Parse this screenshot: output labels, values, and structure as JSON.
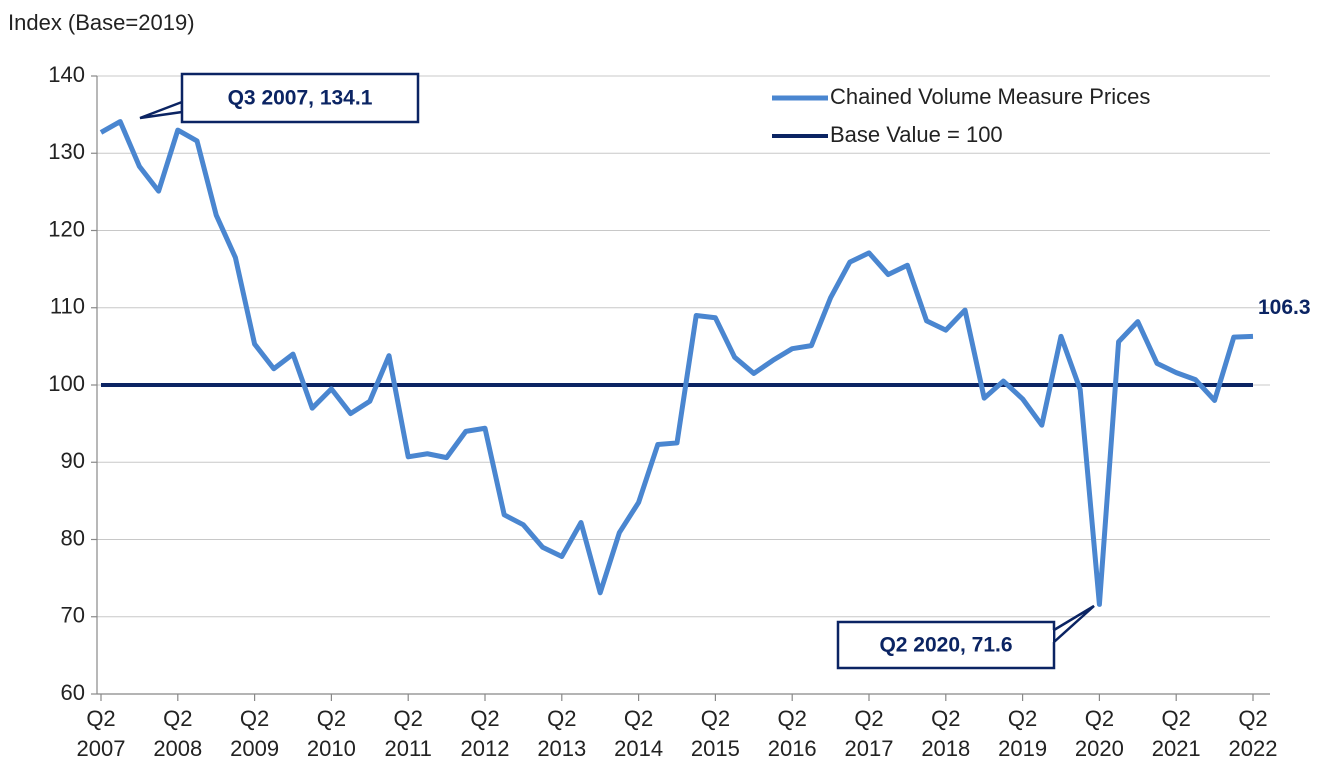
{
  "chart_data": {
    "type": "line",
    "y_label": "Index (Base=2019)",
    "categories": [
      "Q2 2007",
      null,
      null,
      null,
      "Q2 2008",
      null,
      null,
      null,
      "Q2 2009",
      null,
      null,
      null,
      "Q2 2010",
      null,
      null,
      null,
      "Q2 2011",
      null,
      null,
      null,
      "Q2 2012",
      null,
      null,
      null,
      "Q2 2013",
      null,
      null,
      null,
      "Q2 2014",
      null,
      null,
      null,
      "Q2 2015",
      null,
      null,
      null,
      "Q2 2016",
      null,
      null,
      null,
      "Q2 2017",
      null,
      null,
      null,
      "Q2 2018",
      null,
      null,
      null,
      "Q2 2019",
      null,
      null,
      null,
      "Q2 2020",
      null,
      null,
      null,
      "Q2 2021",
      null,
      null,
      null,
      "Q2 2022"
    ],
    "series": [
      {
        "name": "Chained Volume Measure Prices",
        "color": "#4a86d0",
        "values": [
          132.7,
          134.1,
          128.3,
          125.1,
          133,
          131.6,
          122,
          116.5,
          105.3,
          102.1,
          104,
          97,
          99.5,
          96.3,
          97.9,
          103.8,
          90.7,
          91.1,
          90.6,
          94,
          94.4,
          83.2,
          81.9,
          79,
          77.8,
          82.2,
          73.1,
          80.9,
          84.8,
          92.3,
          92.5,
          109,
          108.7,
          103.6,
          101.5,
          103.2,
          104.7,
          105.1,
          111.3,
          115.9,
          117.1,
          114.3,
          115.5,
          108.3,
          107.1,
          109.7,
          98.3,
          100.5,
          98.2,
          94.8,
          106.3,
          99.4,
          71.6,
          105.6,
          108.2,
          102.8,
          101.6,
          100.7,
          98,
          106.2,
          106.3
        ],
        "value_labels": [
          null,
          "Q3 2007, 134.1",
          null,
          null,
          null,
          null,
          null,
          null,
          null,
          null,
          null,
          null,
          null,
          null,
          null,
          null,
          null,
          null,
          null,
          null,
          null,
          null,
          null,
          null,
          null,
          null,
          null,
          null,
          null,
          null,
          null,
          null,
          null,
          null,
          null,
          null,
          null,
          null,
          null,
          null,
          null,
          null,
          null,
          null,
          null,
          null,
          null,
          null,
          null,
          null,
          null,
          null,
          "Q2 2020, 71.6",
          null,
          null,
          null,
          null,
          null,
          null,
          null,
          "106.3"
        ]
      },
      {
        "name": "Base Value = 100",
        "color": "#0b2463",
        "values": [
          100,
          100,
          100,
          100,
          100,
          100,
          100,
          100,
          100,
          100,
          100,
          100,
          100,
          100,
          100,
          100,
          100,
          100,
          100,
          100,
          100,
          100,
          100,
          100,
          100,
          100,
          100,
          100,
          100,
          100,
          100,
          100,
          100,
          100,
          100,
          100,
          100,
          100,
          100,
          100,
          100,
          100,
          100,
          100,
          100,
          100,
          100,
          100,
          100,
          100,
          100,
          100,
          100,
          100,
          100,
          100,
          100,
          100,
          100,
          100,
          100
        ]
      }
    ],
    "ylim": [
      60,
      140
    ],
    "yticks": [
      60,
      70,
      80,
      90,
      100,
      110,
      120,
      130,
      140
    ],
    "grid": true,
    "legend": "top-right"
  }
}
